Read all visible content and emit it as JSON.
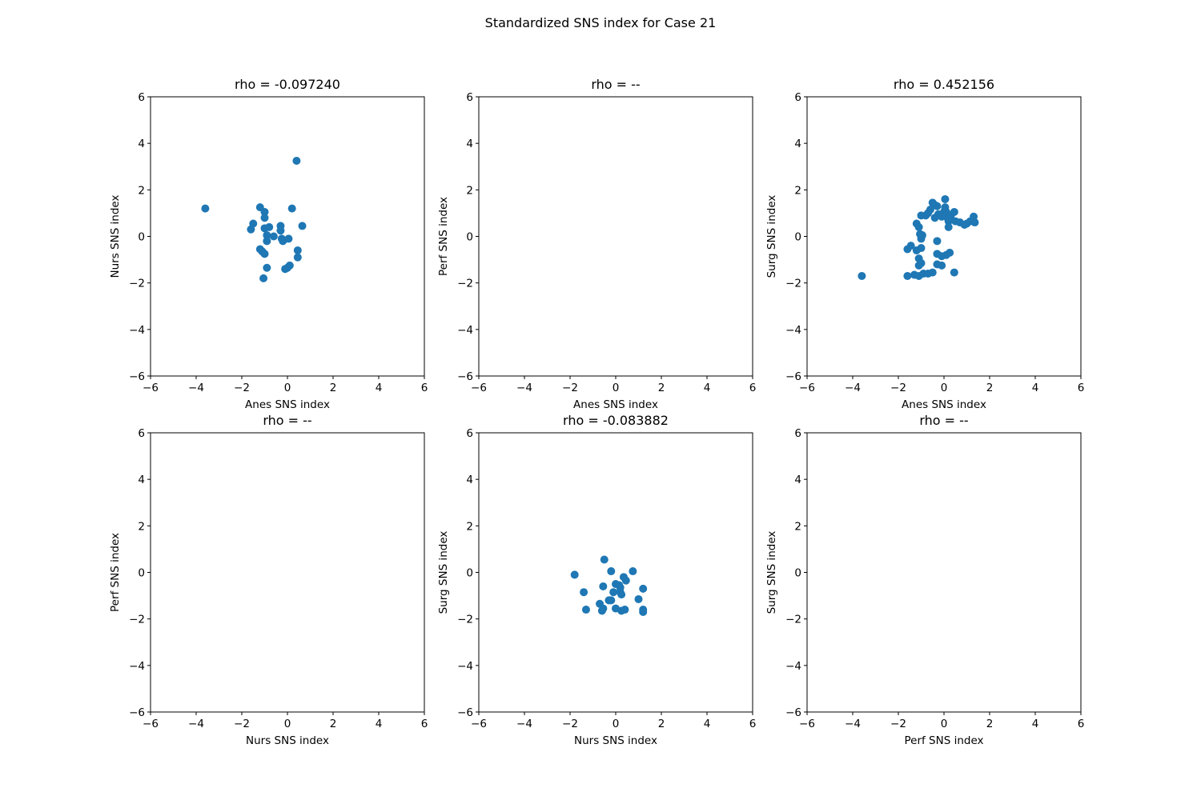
{
  "figure": {
    "suptitle": "Standardized SNS index for Case 21"
  },
  "chart_data": [
    {
      "type": "scatter",
      "title": "rho = -0.097240",
      "xlabel": "Anes SNS index",
      "ylabel": "Nurs SNS index",
      "xlim": [
        -6,
        6
      ],
      "ylim": [
        -6,
        6
      ],
      "xticks": [
        "−6",
        "−4",
        "−2",
        "0",
        "2",
        "4",
        "6"
      ],
      "yticks": [
        "−6",
        "−4",
        "−2",
        "0",
        "2",
        "4",
        "6"
      ],
      "grid": false,
      "marker_color": "#1f77b4",
      "points": [
        [
          -3.6,
          1.2
        ],
        [
          0.4,
          3.25
        ],
        [
          -1.2,
          1.25
        ],
        [
          -1.5,
          0.55
        ],
        [
          -1.6,
          0.3
        ],
        [
          -1.0,
          1.05
        ],
        [
          -1.0,
          0.8
        ],
        [
          -1.0,
          0.35
        ],
        [
          -0.8,
          0.4
        ],
        [
          -0.9,
          0.05
        ],
        [
          -0.9,
          -0.2
        ],
        [
          -0.6,
          0.0
        ],
        [
          -0.3,
          0.45
        ],
        [
          -0.3,
          0.25
        ],
        [
          -0.25,
          -0.1
        ],
        [
          -0.2,
          -0.2
        ],
        [
          0.05,
          -0.1
        ],
        [
          0.2,
          1.2
        ],
        [
          0.65,
          0.45
        ],
        [
          -1.2,
          -0.55
        ],
        [
          -1.1,
          -0.65
        ],
        [
          -1.0,
          -0.75
        ],
        [
          -0.9,
          -1.35
        ],
        [
          -1.05,
          -1.8
        ],
        [
          -0.1,
          -1.4
        ],
        [
          0.0,
          -1.35
        ],
        [
          0.1,
          -1.25
        ],
        [
          0.45,
          -0.6
        ],
        [
          0.45,
          -0.9
        ]
      ]
    },
    {
      "type": "scatter",
      "title": "rho = --",
      "xlabel": "Anes SNS index",
      "ylabel": "Perf SNS index",
      "xlim": [
        -6,
        6
      ],
      "ylim": [
        -6,
        6
      ],
      "xticks": [
        "−6",
        "−4",
        "−2",
        "0",
        "2",
        "4",
        "6"
      ],
      "yticks": [
        "−6",
        "−4",
        "−2",
        "0",
        "2",
        "4",
        "6"
      ],
      "grid": false,
      "marker_color": "#1f77b4",
      "points": []
    },
    {
      "type": "scatter",
      "title": "rho = 0.452156",
      "xlabel": "Anes SNS index",
      "ylabel": "Surg SNS index",
      "xlim": [
        -6,
        6
      ],
      "ylim": [
        -6,
        6
      ],
      "xticks": [
        "−6",
        "−4",
        "−2",
        "0",
        "2",
        "4",
        "6"
      ],
      "yticks": [
        "−6",
        "−4",
        "−2",
        "0",
        "2",
        "4",
        "6"
      ],
      "grid": false,
      "marker_color": "#1f77b4",
      "points": [
        [
          -3.6,
          -1.7
        ],
        [
          -1.6,
          -1.7
        ],
        [
          -1.6,
          -0.55
        ],
        [
          -1.45,
          -0.4
        ],
        [
          -1.2,
          0.55
        ],
        [
          -1.1,
          0.4
        ],
        [
          -1.05,
          0.1
        ],
        [
          -1.0,
          0.9
        ],
        [
          -1.0,
          -0.1
        ],
        [
          -0.95,
          0.05
        ],
        [
          -0.8,
          0.9
        ],
        [
          -0.7,
          1.0
        ],
        [
          -0.6,
          1.15
        ],
        [
          -0.5,
          1.45
        ],
        [
          -0.4,
          1.35
        ],
        [
          -0.3,
          1.3
        ],
        [
          -0.4,
          0.8
        ],
        [
          -0.25,
          0.95
        ],
        [
          -0.1,
          0.85
        ],
        [
          0.0,
          1.05
        ],
        [
          0.05,
          1.6
        ],
        [
          0.05,
          1.25
        ],
        [
          0.1,
          1.05
        ],
        [
          0.1,
          0.95
        ],
        [
          0.15,
          0.8
        ],
        [
          0.2,
          0.65
        ],
        [
          0.2,
          0.4
        ],
        [
          0.3,
          0.9
        ],
        [
          0.45,
          1.05
        ],
        [
          0.5,
          0.65
        ],
        [
          0.7,
          0.6
        ],
        [
          0.9,
          0.5
        ],
        [
          1.0,
          0.55
        ],
        [
          1.15,
          0.65
        ],
        [
          1.3,
          0.85
        ],
        [
          1.35,
          0.6
        ],
        [
          -0.3,
          -0.2
        ],
        [
          -0.3,
          -0.75
        ],
        [
          -0.1,
          -0.85
        ],
        [
          0.1,
          -0.8
        ],
        [
          0.25,
          -0.7
        ],
        [
          -1.0,
          -0.5
        ],
        [
          -1.2,
          -0.6
        ],
        [
          -1.1,
          -0.95
        ],
        [
          -1.0,
          -1.15
        ],
        [
          -1.1,
          -1.25
        ],
        [
          -0.3,
          -1.2
        ],
        [
          -0.1,
          -1.25
        ],
        [
          -1.3,
          -1.65
        ],
        [
          -1.1,
          -1.7
        ],
        [
          -0.9,
          -1.6
        ],
        [
          -0.7,
          -1.6
        ],
        [
          -0.5,
          -1.55
        ],
        [
          0.45,
          -1.55
        ]
      ]
    },
    {
      "type": "scatter",
      "title": "rho = --",
      "xlabel": "Nurs SNS index",
      "ylabel": "Perf SNS index",
      "xlim": [
        -6,
        6
      ],
      "ylim": [
        -6,
        6
      ],
      "xticks": [
        "−6",
        "−4",
        "−2",
        "0",
        "2",
        "4",
        "6"
      ],
      "yticks": [
        "−6",
        "−4",
        "−2",
        "0",
        "2",
        "4",
        "6"
      ],
      "grid": false,
      "marker_color": "#1f77b4",
      "points": []
    },
    {
      "type": "scatter",
      "title": "rho = -0.083882",
      "xlabel": "Nurs SNS index",
      "ylabel": "Surg SNS index",
      "xlim": [
        -6,
        6
      ],
      "ylim": [
        -6,
        6
      ],
      "xticks": [
        "−6",
        "−4",
        "−2",
        "0",
        "2",
        "4",
        "6"
      ],
      "yticks": [
        "−6",
        "−4",
        "−2",
        "0",
        "2",
        "4",
        "6"
      ],
      "grid": false,
      "marker_color": "#1f77b4",
      "points": [
        [
          -1.8,
          -0.1
        ],
        [
          -1.4,
          -0.85
        ],
        [
          -1.3,
          -1.6
        ],
        [
          -0.5,
          0.55
        ],
        [
          -0.55,
          -0.6
        ],
        [
          -0.7,
          -1.35
        ],
        [
          -0.6,
          -1.65
        ],
        [
          -0.55,
          -1.55
        ],
        [
          -0.2,
          0.05
        ],
        [
          -0.3,
          -1.2
        ],
        [
          -0.2,
          -1.2
        ],
        [
          -0.1,
          -0.85
        ],
        [
          0.0,
          -0.5
        ],
        [
          0.0,
          -1.55
        ],
        [
          0.15,
          -0.55
        ],
        [
          0.2,
          -0.65
        ],
        [
          0.2,
          -0.85
        ],
        [
          0.25,
          -0.95
        ],
        [
          0.35,
          -0.2
        ],
        [
          0.45,
          -0.35
        ],
        [
          0.25,
          -1.65
        ],
        [
          0.4,
          -1.6
        ],
        [
          0.75,
          0.05
        ],
        [
          1.0,
          -1.15
        ],
        [
          1.2,
          -0.7
        ],
        [
          1.2,
          -1.6
        ],
        [
          1.2,
          -1.7
        ]
      ]
    },
    {
      "type": "scatter",
      "title": "rho = --",
      "xlabel": "Perf SNS index",
      "ylabel": "Surg SNS index",
      "xlim": [
        -6,
        6
      ],
      "ylim": [
        -6,
        6
      ],
      "xticks": [
        "−6",
        "−4",
        "−2",
        "0",
        "2",
        "4",
        "6"
      ],
      "yticks": [
        "−6",
        "−4",
        "−2",
        "0",
        "2",
        "4",
        "6"
      ],
      "grid": false,
      "marker_color": "#1f77b4",
      "points": []
    }
  ]
}
